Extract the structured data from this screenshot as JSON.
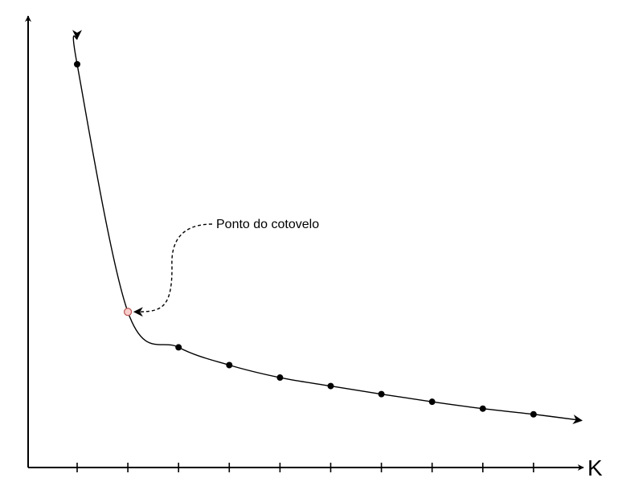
{
  "chart_data": {
    "type": "line",
    "title": "",
    "xlabel": "K",
    "ylabel": "",
    "x": [
      1,
      2,
      3,
      4,
      5,
      6,
      7,
      8,
      9,
      10
    ],
    "y": [
      100,
      38.6,
      29.8,
      25.4,
      22.3,
      20.2,
      18.2,
      16.3,
      14.6,
      13.2
    ],
    "xlim": [
      0,
      11
    ],
    "ylim": [
      0,
      116
    ],
    "tick_count": 10,
    "grid": false,
    "legend": "none",
    "elbow": {
      "x": 2,
      "label": "Ponto do cotovelo"
    },
    "colors": {
      "elbow_fill": "#f8cecc",
      "elbow_stroke": "#b85450",
      "line": "#000000"
    }
  }
}
